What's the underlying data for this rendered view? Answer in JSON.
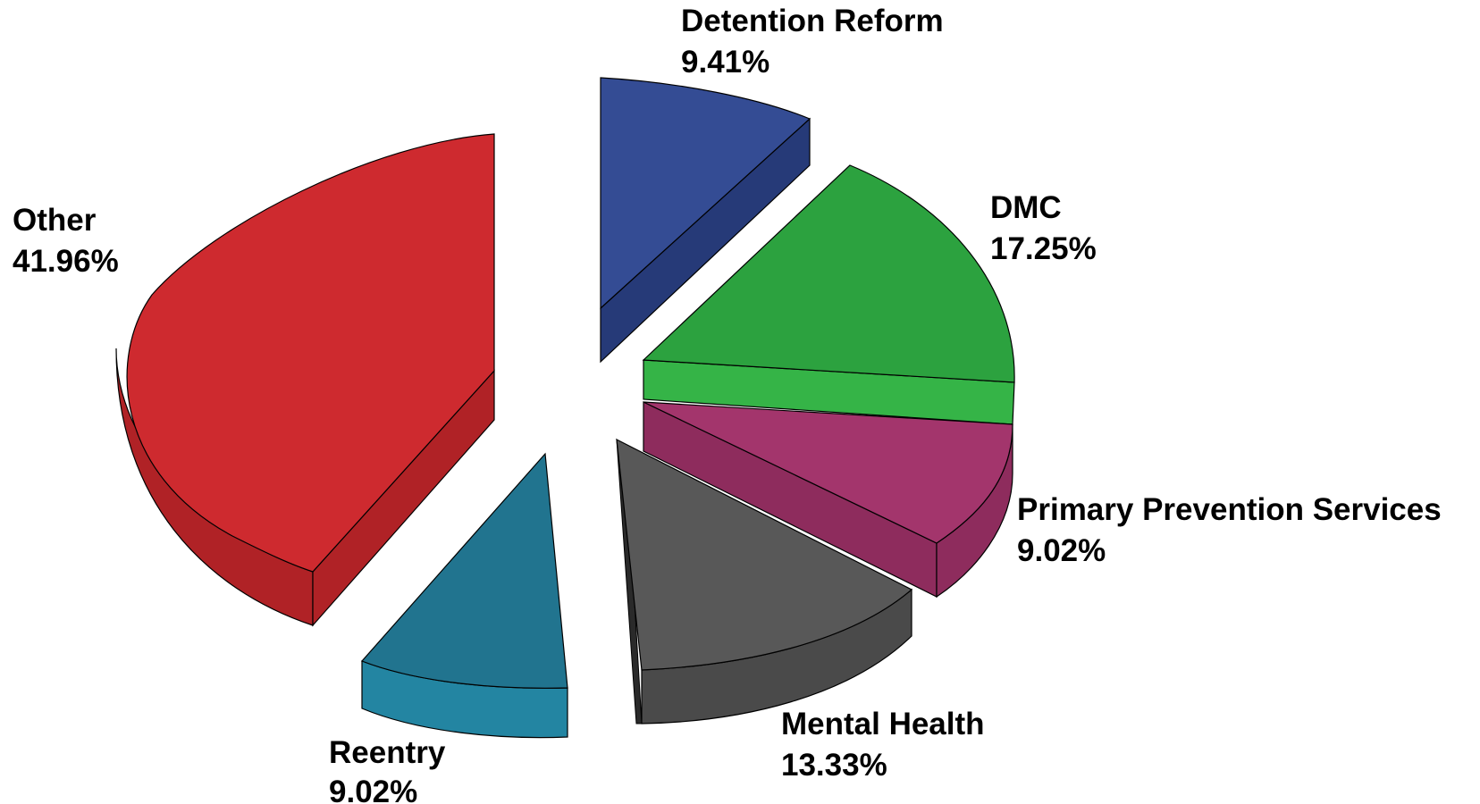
{
  "chart_data": {
    "type": "pie",
    "style": "3d-exploded",
    "title": "",
    "legend": "none",
    "slices": [
      {
        "label": "Detention Reform",
        "value_label": "9.41%",
        "value": 9.41,
        "color": "#344C94",
        "side_color": "#263A78"
      },
      {
        "label": "DMC",
        "value_label": "17.25%",
        "value": 17.25,
        "color": "#2CA23F",
        "side_color": "#35B447"
      },
      {
        "label": "Primary Prevention Services",
        "value_label": "9.02%",
        "value": 9.02,
        "color": "#A3356C",
        "side_color": "#8E2C5D"
      },
      {
        "label": "Mental Health",
        "value_label": "13.33%",
        "value": 13.33,
        "color": "#585858",
        "side_color": "#4A4A4A"
      },
      {
        "label": "Reentry",
        "value_label": "9.02%",
        "value": 9.02,
        "color": "#21748F",
        "side_color": "#2385A2"
      },
      {
        "label": "Other",
        "value_label": "41.96%",
        "value": 41.96,
        "color": "#CE2A2F",
        "side_color": "#B02226"
      }
    ]
  }
}
